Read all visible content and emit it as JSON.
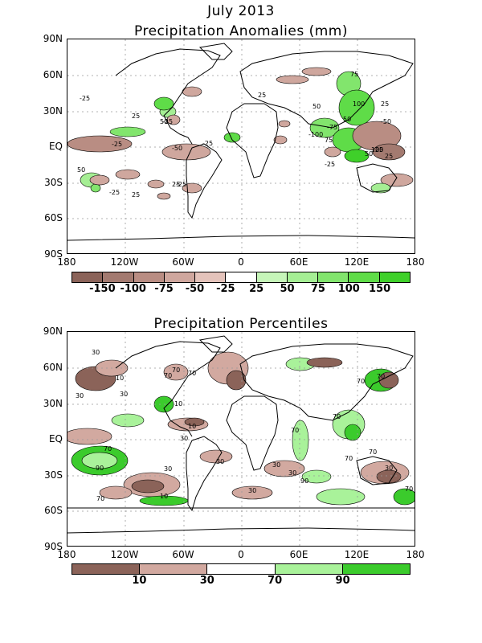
{
  "title_line1": "July 2013",
  "panel1": {
    "title": "Precipitation Anomalies (mm)",
    "colorbar": {
      "colors": [
        "#8b6359",
        "#a37a70",
        "#b98d83",
        "#cfa79e",
        "#e4c3bb",
        "#ffffff",
        "#c6f5b9",
        "#a5ee94",
        "#82e56d",
        "#5fdc48",
        "#3fd02a"
      ],
      "labels": [
        "-150",
        "-100",
        "-75",
        "-50",
        "-25",
        "25",
        "50",
        "75",
        "100",
        "150"
      ]
    },
    "contour_labels": [
      "-25",
      "-25",
      "-25",
      "-25",
      "-25",
      "-25",
      "-25",
      "-25",
      "25",
      "25",
      "25",
      "25",
      "25",
      "25",
      "50",
      "50",
      "50",
      "50",
      "50",
      "75",
      "75",
      "100",
      "100",
      "-50",
      "-100",
      "-75",
      "-50"
    ]
  },
  "panel2": {
    "title": "Precipitation Percentiles",
    "colorbar": {
      "colors": [
        "#8b6359",
        "#d2a9a0",
        "#ffffff",
        "#a9f29a",
        "#3bcb2c"
      ],
      "labels": [
        "10",
        "30",
        "70",
        "90"
      ]
    },
    "contour_labels": [
      "30",
      "10",
      "70",
      "10",
      "30",
      "70",
      "30",
      "70",
      "70",
      "10",
      "30",
      "70",
      "30",
      "70",
      "70",
      "90",
      "70",
      "30",
      "70",
      "30",
      "30",
      "10",
      "30",
      "90",
      "70",
      "70",
      "30",
      "70"
    ]
  },
  "axes": {
    "y_ticks_top": [
      "90N",
      "60N",
      "30N",
      "EQ",
      "30S",
      "60S",
      "90S"
    ],
    "y_ticks_bottom": [
      "90N",
      "60N",
      "30N",
      "EQ",
      "30S",
      "60S",
      "90S"
    ],
    "x_ticks": [
      "180",
      "120W",
      "60W",
      "0",
      "60E",
      "120E",
      "180"
    ]
  }
}
